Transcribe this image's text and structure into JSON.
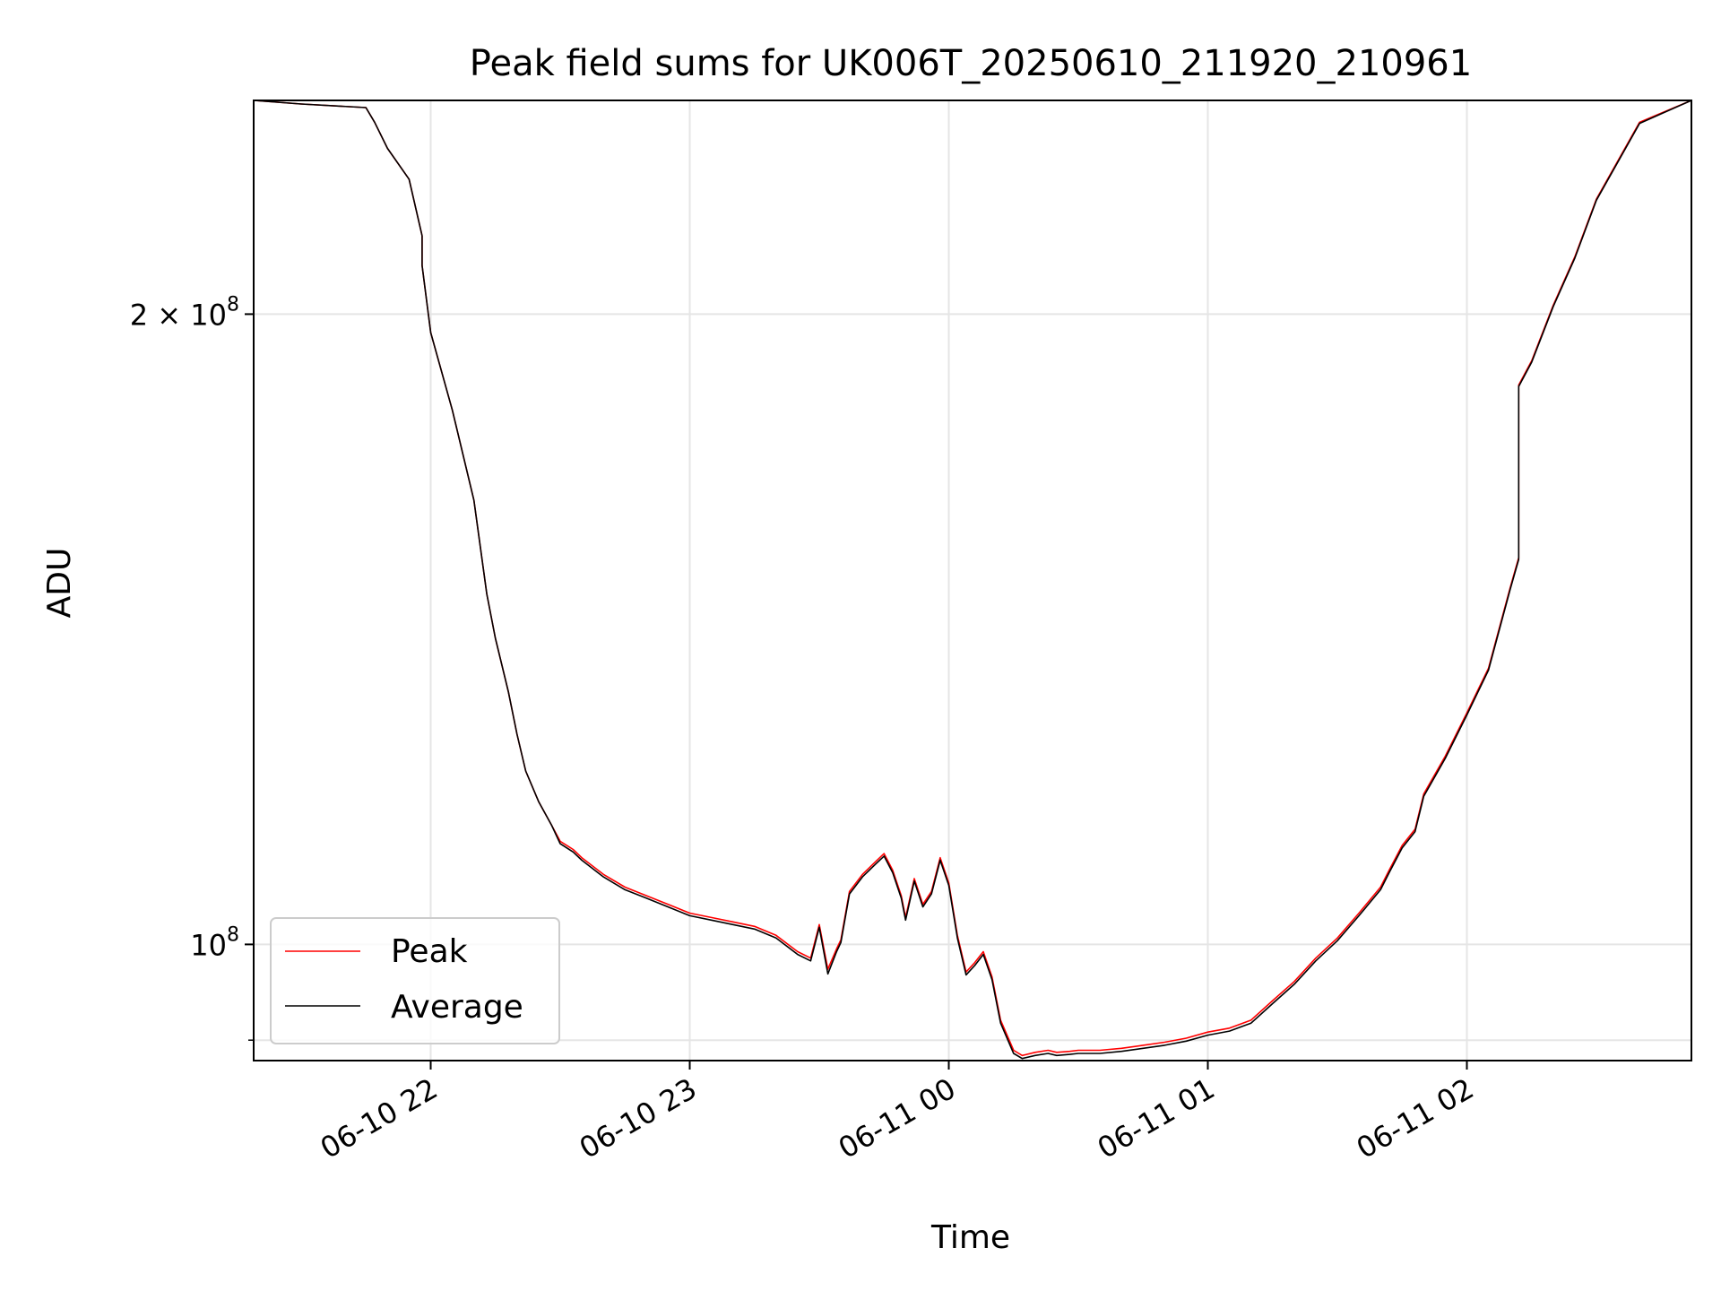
{
  "chart_data": {
    "type": "line",
    "title": "Peak field sums for UK006T_20250610_211920_210961",
    "xlabel": "Time",
    "ylabel": "ADU",
    "yscale": "log",
    "grid": true,
    "legend_position": "lower-left",
    "xlim": [
      "2025-06-10 21:19",
      "2025-06-11 02:52"
    ],
    "ylim": [
      88000000,
      253000000
    ],
    "x_ticks": [
      {
        "value": "2025-06-10 22:00",
        "label": "06-10 22"
      },
      {
        "value": "2025-06-10 23:00",
        "label": "06-10 23"
      },
      {
        "value": "2025-06-11 00:00",
        "label": "06-11 00"
      },
      {
        "value": "2025-06-11 01:00",
        "label": "06-11 01"
      },
      {
        "value": "2025-06-11 02:00",
        "label": "06-11 02"
      }
    ],
    "y_major_ticks": [
      {
        "value": 100000000,
        "label_base": "10",
        "label_exp": "8"
      },
      {
        "value": 200000000,
        "label_base": "2 × 10",
        "label_exp": "8"
      }
    ],
    "y_minor_ticks": [
      90000000
    ],
    "series": [
      {
        "name": "Peak",
        "color": "#ff0000",
        "x": [
          "2025-06-10 21:19",
          "2025-06-10 21:30",
          "2025-06-10 21:45",
          "2025-06-10 21:47",
          "2025-06-10 21:50",
          "2025-06-10 21:55",
          "2025-06-10 21:58",
          "2025-06-10 21:58",
          "2025-06-10 22:00",
          "2025-06-10 22:05",
          "2025-06-10 22:10",
          "2025-06-10 22:13",
          "2025-06-10 22:15",
          "2025-06-10 22:18",
          "2025-06-10 22:20",
          "2025-06-10 22:22",
          "2025-06-10 22:25",
          "2025-06-10 22:28",
          "2025-06-10 22:30",
          "2025-06-10 22:33",
          "2025-06-10 22:35",
          "2025-06-10 22:40",
          "2025-06-10 22:45",
          "2025-06-10 22:50",
          "2025-06-10 22:55",
          "2025-06-10 23:00",
          "2025-06-10 23:05",
          "2025-06-10 23:10",
          "2025-06-10 23:15",
          "2025-06-10 23:20",
          "2025-06-10 23:25",
          "2025-06-10 23:28",
          "2025-06-10 23:30",
          "2025-06-10 23:32",
          "2025-06-10 23:34",
          "2025-06-10 23:35",
          "2025-06-10 23:37",
          "2025-06-10 23:40",
          "2025-06-10 23:43",
          "2025-06-10 23:45",
          "2025-06-10 23:47",
          "2025-06-10 23:49",
          "2025-06-10 23:50",
          "2025-06-10 23:52",
          "2025-06-10 23:54",
          "2025-06-10 23:56",
          "2025-06-10 23:58",
          "2025-06-11 00:00",
          "2025-06-11 00:02",
          "2025-06-11 00:04",
          "2025-06-11 00:06",
          "2025-06-11 00:08",
          "2025-06-11 00:10",
          "2025-06-11 00:12",
          "2025-06-11 00:15",
          "2025-06-11 00:17",
          "2025-06-11 00:20",
          "2025-06-11 00:23",
          "2025-06-11 00:25",
          "2025-06-11 00:28",
          "2025-06-11 00:30",
          "2025-06-11 00:35",
          "2025-06-11 00:40",
          "2025-06-11 00:45",
          "2025-06-11 00:50",
          "2025-06-11 00:55",
          "2025-06-11 01:00",
          "2025-06-11 01:05",
          "2025-06-11 01:10",
          "2025-06-11 01:15",
          "2025-06-11 01:20",
          "2025-06-11 01:25",
          "2025-06-11 01:30",
          "2025-06-11 01:35",
          "2025-06-11 01:40",
          "2025-06-11 01:42",
          "2025-06-11 01:45",
          "2025-06-11 01:48",
          "2025-06-11 01:50",
          "2025-06-11 01:55",
          "2025-06-11 02:00",
          "2025-06-11 02:05",
          "2025-06-11 02:10",
          "2025-06-11 02:12",
          "2025-06-11 02:12",
          "2025-06-11 02:15",
          "2025-06-11 02:20",
          "2025-06-11 02:25",
          "2025-06-11 02:30",
          "2025-06-11 02:40",
          "2025-06-11 02:52"
        ],
        "y": [
          253000000,
          252000000,
          251000000,
          247000000,
          240000000,
          232000000,
          218000000,
          211000000,
          196000000,
          180000000,
          163000000,
          147000000,
          140000000,
          132000000,
          126000000,
          121000000,
          117000000,
          114000000,
          112000000,
          111000000,
          110000000,
          108000000,
          106500000,
          105500000,
          104500000,
          103500000,
          103000000,
          102500000,
          102000000,
          101000000,
          99200000,
          98500000,
          102200000,
          97300000,
          99500000,
          100500000,
          106000000,
          108000000,
          109500000,
          110500000,
          108500000,
          105500000,
          103000000,
          107500000,
          104500000,
          106000000,
          110000000,
          107000000,
          101000000,
          97000000,
          98000000,
          99200000,
          96500000,
          92000000,
          89000000,
          88500000,
          88800000,
          89000000,
          88800000,
          88900000,
          89000000,
          89000000,
          89200000,
          89500000,
          89800000,
          90200000,
          90800000,
          91200000,
          92000000,
          94000000,
          96000000,
          98500000,
          100700000,
          103500000,
          106500000,
          108500000,
          111500000,
          113500000,
          118000000,
          123000000,
          129000000,
          135500000,
          148000000,
          153000000,
          185000000,
          190000000,
          202000000,
          213000000,
          227000000,
          247000000,
          253000000
        ]
      },
      {
        "name": "Average",
        "color": "#000000",
        "x": [
          "2025-06-10 21:19",
          "2025-06-10 21:30",
          "2025-06-10 21:45",
          "2025-06-10 21:47",
          "2025-06-10 21:50",
          "2025-06-10 21:55",
          "2025-06-10 21:58",
          "2025-06-10 21:58",
          "2025-06-10 22:00",
          "2025-06-10 22:05",
          "2025-06-10 22:10",
          "2025-06-10 22:13",
          "2025-06-10 22:15",
          "2025-06-10 22:18",
          "2025-06-10 22:20",
          "2025-06-10 22:22",
          "2025-06-10 22:25",
          "2025-06-10 22:28",
          "2025-06-10 22:30",
          "2025-06-10 22:33",
          "2025-06-10 22:35",
          "2025-06-10 22:40",
          "2025-06-10 22:45",
          "2025-06-10 22:50",
          "2025-06-10 22:55",
          "2025-06-10 23:00",
          "2025-06-10 23:05",
          "2025-06-10 23:10",
          "2025-06-10 23:15",
          "2025-06-10 23:20",
          "2025-06-10 23:25",
          "2025-06-10 23:28",
          "2025-06-10 23:30",
          "2025-06-10 23:32",
          "2025-06-10 23:34",
          "2025-06-10 23:35",
          "2025-06-10 23:37",
          "2025-06-10 23:40",
          "2025-06-10 23:43",
          "2025-06-10 23:45",
          "2025-06-10 23:47",
          "2025-06-10 23:49",
          "2025-06-10 23:50",
          "2025-06-10 23:52",
          "2025-06-10 23:54",
          "2025-06-10 23:56",
          "2025-06-10 23:58",
          "2025-06-11 00:00",
          "2025-06-11 00:02",
          "2025-06-11 00:04",
          "2025-06-11 00:06",
          "2025-06-11 00:08",
          "2025-06-11 00:10",
          "2025-06-11 00:12",
          "2025-06-11 00:15",
          "2025-06-11 00:17",
          "2025-06-11 00:20",
          "2025-06-11 00:23",
          "2025-06-11 00:25",
          "2025-06-11 00:28",
          "2025-06-11 00:30",
          "2025-06-11 00:35",
          "2025-06-11 00:40",
          "2025-06-11 00:45",
          "2025-06-11 00:50",
          "2025-06-11 00:55",
          "2025-06-11 01:00",
          "2025-06-11 01:05",
          "2025-06-11 01:10",
          "2025-06-11 01:15",
          "2025-06-11 01:20",
          "2025-06-11 01:25",
          "2025-06-11 01:30",
          "2025-06-11 01:35",
          "2025-06-11 01:40",
          "2025-06-11 01:42",
          "2025-06-11 01:45",
          "2025-06-11 01:48",
          "2025-06-11 01:50",
          "2025-06-11 01:55",
          "2025-06-11 02:00",
          "2025-06-11 02:05",
          "2025-06-11 02:10",
          "2025-06-11 02:12",
          "2025-06-11 02:12",
          "2025-06-11 02:15",
          "2025-06-11 02:20",
          "2025-06-11 02:25",
          "2025-06-11 02:30",
          "2025-06-11 02:40",
          "2025-06-11 02:52"
        ],
        "y": [
          253000000,
          252000000,
          251000000,
          247000000,
          240000000,
          232000000,
          218000000,
          211000000,
          196000000,
          180000000,
          163000000,
          147000000,
          140000000,
          132000000,
          126000000,
          121000000,
          117000000,
          114000000,
          111700000,
          110700000,
          109700000,
          107700000,
          106200000,
          105200000,
          104200000,
          103200000,
          102700000,
          102200000,
          101700000,
          100700000,
          98900000,
          98200000,
          101900000,
          96800000,
          99200000,
          100200000,
          105700000,
          107700000,
          109200000,
          110200000,
          108200000,
          105200000,
          102700000,
          107200000,
          104200000,
          105700000,
          109700000,
          106700000,
          100700000,
          96700000,
          97700000,
          98900000,
          96200000,
          91700000,
          88700000,
          88200000,
          88500000,
          88700000,
          88500000,
          88600000,
          88700000,
          88700000,
          88900000,
          89200000,
          89500000,
          89900000,
          90500000,
          90900000,
          91700000,
          93700000,
          95700000,
          98200000,
          100400000,
          103200000,
          106200000,
          108200000,
          111200000,
          113200000,
          117700000,
          122700000,
          128700000,
          135200000,
          147700000,
          152700000,
          184700000,
          189700000,
          201700000,
          212700000,
          226700000,
          246700000,
          253000000
        ]
      }
    ]
  }
}
